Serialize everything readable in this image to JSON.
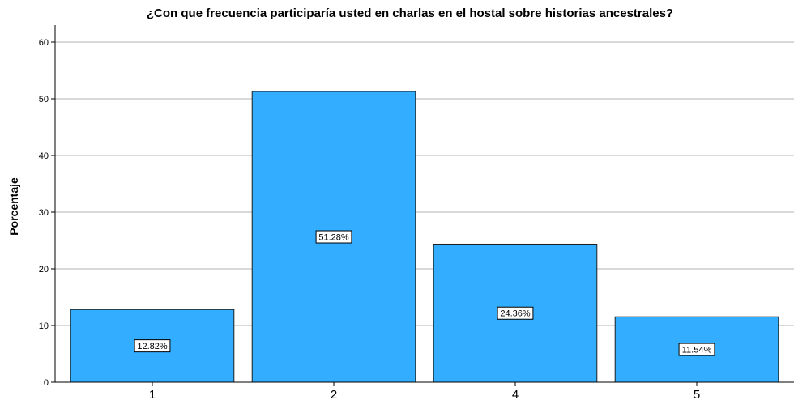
{
  "chart_data": {
    "type": "bar",
    "title": "¿Con que frecuencia participaría usted en charlas en el hostal sobre historias ancestrales?",
    "xlabel": "",
    "ylabel": "Porcentaje",
    "categories": [
      "1",
      "2",
      "4",
      "5"
    ],
    "values": [
      12.82,
      51.28,
      24.36,
      11.54
    ],
    "data_labels": [
      "12.82%",
      "51.28%",
      "24.36%",
      "11.54%"
    ],
    "ylim": [
      0,
      63
    ],
    "yticks": [
      0,
      10,
      20,
      30,
      40,
      50,
      60
    ],
    "ytick_labels": [
      "0",
      "10",
      "20",
      "30",
      "40",
      "50",
      "60"
    ],
    "grid": true,
    "bar_color": "#33adff",
    "bar_edge_color": "#1f1f1f"
  }
}
